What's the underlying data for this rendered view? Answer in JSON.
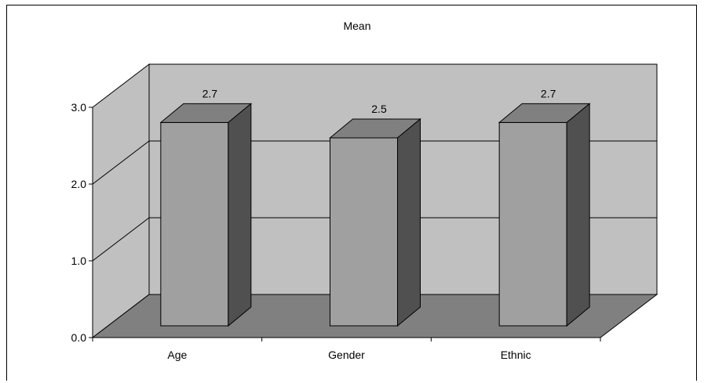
{
  "chart_data": {
    "type": "bar",
    "title": "Mean",
    "categories": [
      "Age",
      "Gender",
      "Ethnic"
    ],
    "values": [
      2.7,
      2.5,
      2.7
    ],
    "data_labels": [
      "2.7",
      "2.5",
      "2.7"
    ],
    "ylim": [
      0,
      3
    ],
    "yticks": [
      "0.0",
      "1.0",
      "2.0",
      "3.0"
    ],
    "grid": true,
    "legend": "none",
    "style": "3d-column",
    "colors": {
      "wall": "#c0c0c0",
      "floor": "#808080",
      "bar_front": "#a0a0a0",
      "bar_top": "#808080",
      "bar_side": "#505050",
      "edge": "#000000"
    }
  }
}
